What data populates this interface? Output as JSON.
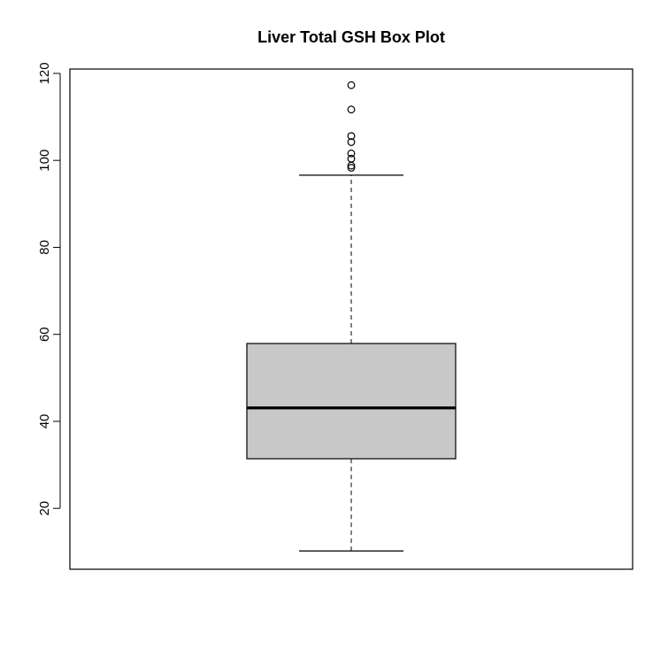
{
  "chart_data": {
    "type": "box",
    "title": "Liver Total GSH Box Plot",
    "xlabel": "",
    "ylabel": "",
    "ylim": [
      6,
      121
    ],
    "yticks": [
      20,
      40,
      60,
      80,
      100,
      120
    ],
    "box": {
      "min": 10.2,
      "q1": 31.4,
      "median": 43.1,
      "q3": 57.9,
      "max": 96.6,
      "outliers": [
        98.3,
        98.8,
        100.4,
        101.6,
        104.2,
        105.6,
        111.7,
        117.3
      ]
    },
    "colors": {
      "box_fill": "#c8c8c8",
      "stroke": "#000000",
      "background": "#ffffff"
    }
  }
}
